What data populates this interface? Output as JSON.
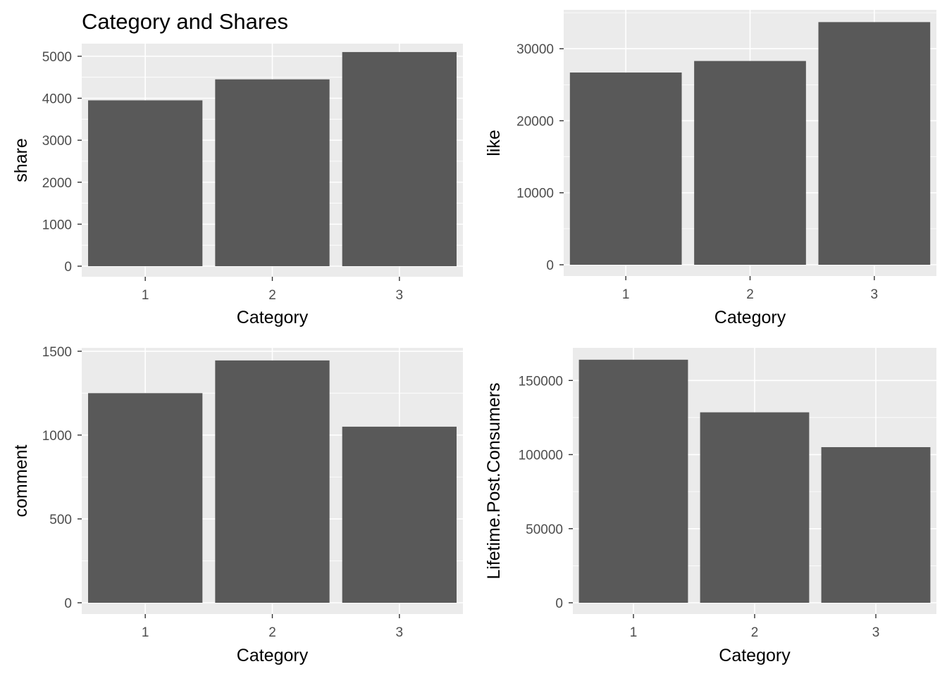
{
  "chart_data": [
    {
      "type": "bar",
      "title": "Category and Shares",
      "xlabel": "Category",
      "ylabel": "share",
      "categories": [
        "1",
        "2",
        "3"
      ],
      "values": [
        3950,
        4450,
        5100
      ],
      "ylim": [
        0,
        5300
      ],
      "yticks": [
        0,
        1000,
        2000,
        3000,
        4000,
        5000
      ],
      "grid": true,
      "colors": {
        "bar": "#595959",
        "panel": "#EBEBEB",
        "grid": "#FFFFFF"
      }
    },
    {
      "type": "bar",
      "title": "",
      "xlabel": "Category",
      "ylabel": "like",
      "categories": [
        "1",
        "2",
        "3"
      ],
      "values": [
        26700,
        28300,
        33700
      ],
      "ylim": [
        0,
        35400
      ],
      "yticks": [
        0,
        10000,
        20000,
        30000
      ],
      "grid": true,
      "colors": {
        "bar": "#595959",
        "panel": "#EBEBEB",
        "grid": "#FFFFFF"
      }
    },
    {
      "type": "bar",
      "title": "",
      "xlabel": "Category",
      "ylabel": "comment",
      "categories": [
        "1",
        "2",
        "3"
      ],
      "values": [
        1250,
        1445,
        1050
      ],
      "ylim": [
        0,
        1520
      ],
      "yticks": [
        0,
        500,
        1000,
        1500
      ],
      "grid": true,
      "colors": {
        "bar": "#595959",
        "panel": "#EBEBEB",
        "grid": "#FFFFFF"
      }
    },
    {
      "type": "bar",
      "title": "",
      "xlabel": "Category",
      "ylabel": "Lifetime.Post.Consumers",
      "categories": [
        "1",
        "2",
        "3"
      ],
      "values": [
        164000,
        128500,
        105000
      ],
      "ylim": [
        0,
        172000
      ],
      "yticks": [
        0,
        50000,
        100000,
        150000
      ],
      "grid": true,
      "colors": {
        "bar": "#595959",
        "panel": "#EBEBEB",
        "grid": "#FFFFFF"
      }
    }
  ]
}
